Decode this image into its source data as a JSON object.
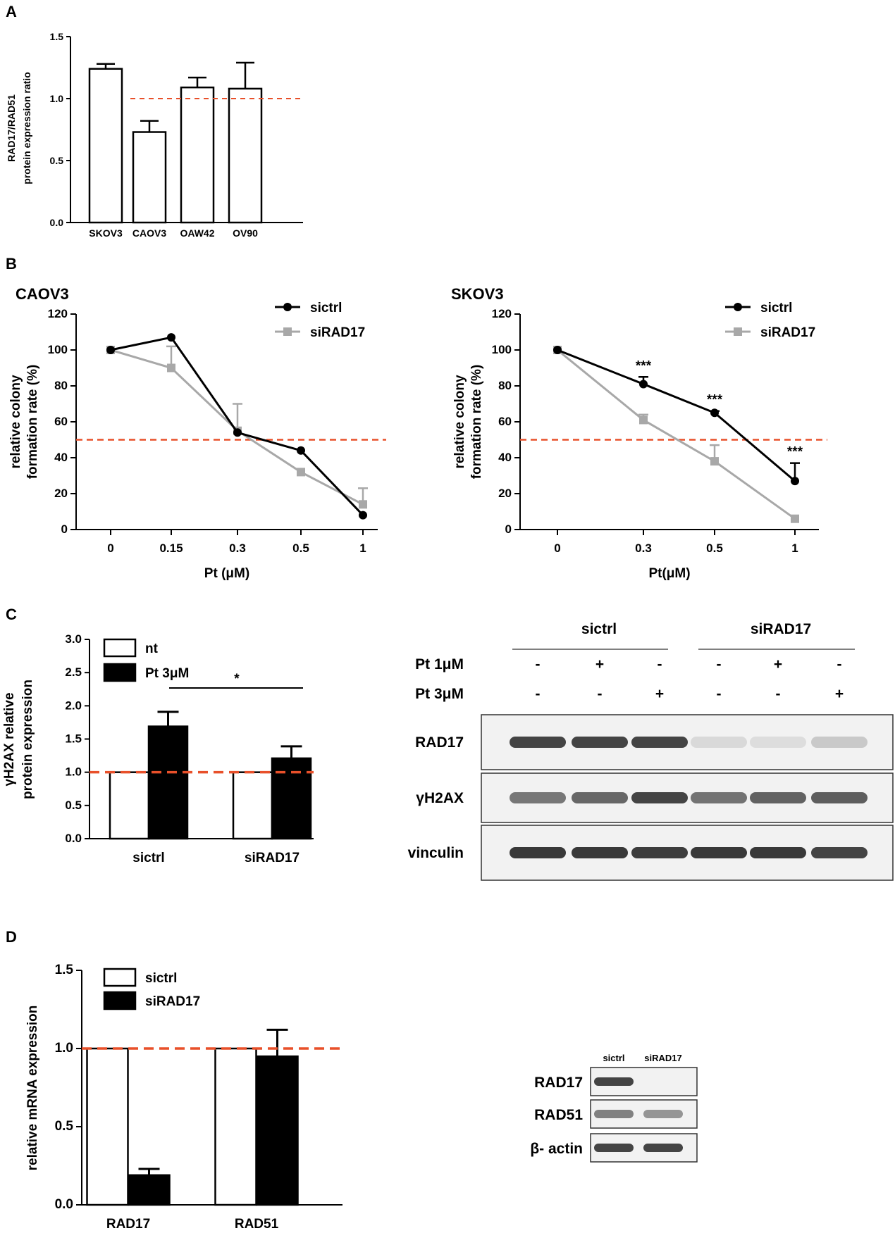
{
  "panels": {
    "A": "A",
    "B": "B",
    "C": "C",
    "D": "D"
  },
  "colors": {
    "refline": "#e8502a",
    "dark": "#000000",
    "grey": "#a8a8a8",
    "blot_bg": "#f2f2f2"
  },
  "chart_data": [
    {
      "id": "A",
      "type": "bar",
      "categories": [
        "SKOV3",
        "CAOV3",
        "OAW42",
        "OV90"
      ],
      "values": [
        1.24,
        0.73,
        1.09,
        1.08
      ],
      "errors": [
        0.04,
        0.09,
        0.08,
        0.21
      ],
      "ylabel_lines": [
        "RAD17/RAD51",
        "protein expression ratio"
      ],
      "ylim": [
        0,
        1.5
      ],
      "yticks": [
        "0.0",
        "0.5",
        "1.0",
        "1.5"
      ],
      "reference_line": 1.0
    },
    {
      "id": "B-CAOV3",
      "type": "line",
      "title": "CAOV3",
      "x": [
        "0",
        "0.15",
        "0.3",
        "0.5",
        "1"
      ],
      "series": [
        {
          "name": "sictrl",
          "values": [
            100,
            107,
            54,
            44,
            8
          ],
          "errors": [
            0,
            0,
            0,
            0,
            0
          ]
        },
        {
          "name": "siRAD17",
          "values": [
            100,
            90,
            55,
            32,
            14
          ],
          "errors": [
            0,
            12,
            15,
            0,
            9
          ]
        }
      ],
      "xlabel": "Pt (μM)",
      "ylabel_lines": [
        "relative colony",
        "formation rate (%)"
      ],
      "ylim": [
        0,
        120
      ],
      "yticks": [
        "0",
        "20",
        "40",
        "60",
        "80",
        "100",
        "120"
      ],
      "reference_line": 50
    },
    {
      "id": "B-SKOV3",
      "type": "line",
      "title": "SKOV3",
      "x": [
        "0",
        "0.3",
        "0.5",
        "1"
      ],
      "series": [
        {
          "name": "sictrl",
          "values": [
            100,
            81,
            65,
            27
          ],
          "errors": [
            0,
            4,
            1,
            10
          ]
        },
        {
          "name": "siRAD17",
          "values": [
            100,
            61,
            38,
            6
          ],
          "errors": [
            0,
            3,
            9,
            0
          ]
        }
      ],
      "annotations": [
        "***",
        "***",
        "***"
      ],
      "xlabel": "Pt(μM)",
      "ylabel_lines": [
        "relative colony",
        "formation rate (%)"
      ],
      "ylim": [
        0,
        120
      ],
      "yticks": [
        "0",
        "20",
        "40",
        "60",
        "80",
        "100",
        "120"
      ],
      "reference_line": 50
    },
    {
      "id": "C",
      "type": "bar",
      "categories": [
        "sictrl",
        "siRAD17"
      ],
      "series": [
        {
          "name": "nt",
          "values": [
            1.0,
            1.0
          ],
          "errors": [
            0,
            0
          ]
        },
        {
          "name": "Pt 3μM",
          "values": [
            1.69,
            1.21
          ],
          "errors": [
            0.22,
            0.18
          ]
        }
      ],
      "significance": "*",
      "ylabel_lines": [
        "γH2AX relative",
        "protein expression"
      ],
      "ylim": [
        0,
        3.0
      ],
      "yticks": [
        "0.0",
        "0.5",
        "1.0",
        "1.5",
        "2.0",
        "2.5",
        "3.0"
      ],
      "reference_line": 1.0
    },
    {
      "id": "D",
      "type": "bar",
      "categories": [
        "RAD17",
        "RAD51"
      ],
      "series": [
        {
          "name": "sictrl",
          "values": [
            1.0,
            1.0
          ],
          "errors": [
            0,
            0
          ]
        },
        {
          "name": "siRAD17",
          "values": [
            0.19,
            0.95
          ],
          "errors": [
            0.04,
            0.17
          ]
        }
      ],
      "ylabel": "relative mRNA expression",
      "ylim": [
        0,
        1.5
      ],
      "yticks": [
        "0.0",
        "0.5",
        "1.0",
        "1.5"
      ],
      "reference_line": 1.0
    }
  ],
  "blot_c": {
    "groups": [
      "sictrl",
      "siRAD17"
    ],
    "treatments": [
      {
        "label": "Pt 1μM",
        "signs": [
          "-",
          "+",
          "-",
          "-",
          "+",
          "-"
        ]
      },
      {
        "label": "Pt 3μM",
        "signs": [
          "-",
          "-",
          "+",
          "-",
          "-",
          "+"
        ]
      }
    ],
    "rows": [
      {
        "label": "RAD17",
        "intensity": [
          0.85,
          0.85,
          0.85,
          0.12,
          0.1,
          0.2
        ]
      },
      {
        "label": "γH2AX",
        "intensity": [
          0.6,
          0.68,
          0.85,
          0.62,
          0.7,
          0.72
        ]
      },
      {
        "label": "vinculin",
        "intensity": [
          0.9,
          0.9,
          0.88,
          0.9,
          0.9,
          0.85
        ]
      }
    ]
  },
  "blot_d": {
    "lanes": [
      "sictrl",
      "siRAD17"
    ],
    "rows": [
      {
        "label": "RAD17",
        "intensity": [
          0.85,
          0.0
        ]
      },
      {
        "label": "RAD51",
        "intensity": [
          0.55,
          0.45
        ]
      },
      {
        "label": "β- actin",
        "intensity": [
          0.85,
          0.85
        ]
      }
    ]
  }
}
